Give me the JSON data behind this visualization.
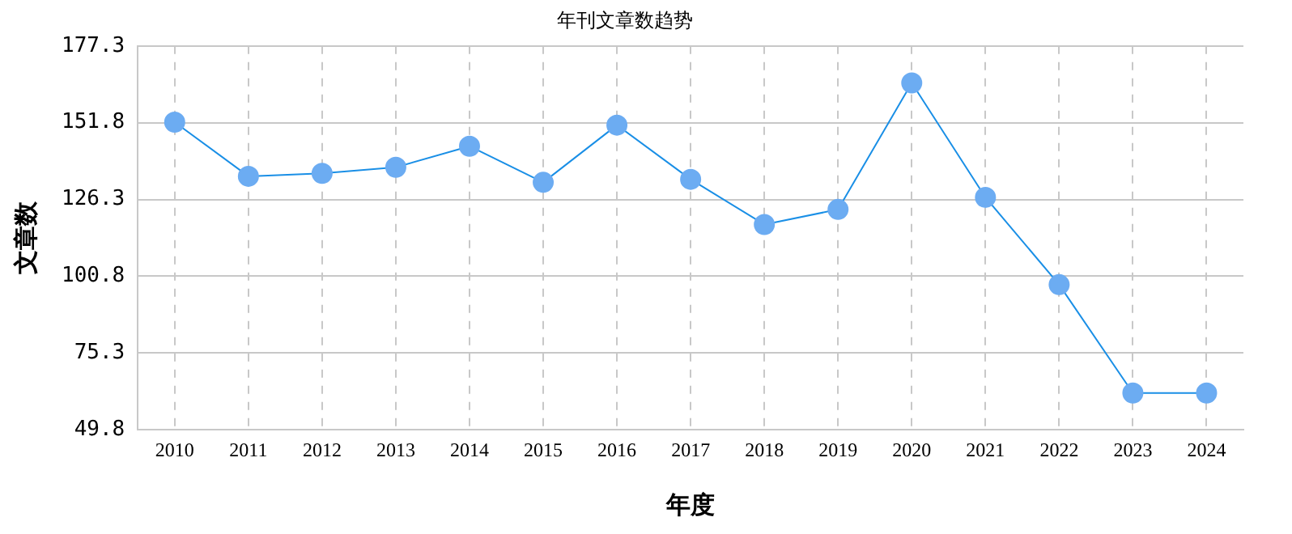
{
  "chart_data": {
    "type": "line",
    "title": "年刊文章数趋势",
    "xlabel": "年度",
    "ylabel": "文章数",
    "categories": [
      "2010",
      "2011",
      "2012",
      "2013",
      "2014",
      "2015",
      "2016",
      "2017",
      "2018",
      "2019",
      "2020",
      "2021",
      "2022",
      "2023",
      "2024"
    ],
    "series": [
      {
        "color": "#1a8fe6",
        "values": [
          152,
          134,
          135,
          137,
          144,
          132,
          151,
          133,
          118,
          123,
          165,
          127,
          98,
          62,
          62
        ]
      }
    ],
    "ylim": [
      49.8,
      177.3
    ],
    "yticks": [
      49.8,
      75.3,
      100.8,
      126.3,
      151.8,
      177.3
    ],
    "grid": true,
    "legend": false,
    "marker": "circle",
    "line_style": "solid"
  }
}
